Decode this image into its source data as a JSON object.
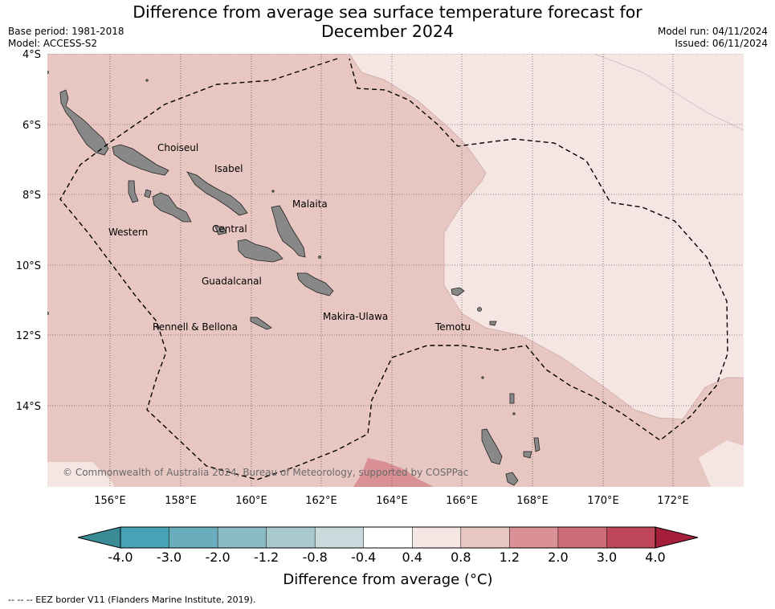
{
  "title_line1": "Difference from average sea surface temperature forecast for",
  "title_line2": "December 2024",
  "base_period": "Base period: 1981-2018",
  "model": "Model: ACCESS-S2",
  "model_run": "Model run: 04/11/2024",
  "issued": "Issued: 06/11/2024",
  "lat_labels": [
    "4°S",
    "6°S",
    "8°S",
    "10°S",
    "12°S",
    "14°S"
  ],
  "lon_labels": [
    "156°E",
    "158°E",
    "160°E",
    "162°E",
    "164°E",
    "166°E",
    "168°E",
    "170°E",
    "172°E"
  ],
  "region_labels": {
    "choiseul": "Choiseul",
    "isabel": "Isabel",
    "malaita": "Malaita",
    "western": "Western",
    "central": "Central",
    "guadalcanal": "Guadalcanal",
    "makira": "Makira-Ulawa",
    "temotu": "Temotu",
    "rennell": "Rennell & Bellona"
  },
  "copyright": "© Commonwealth of Australia 2024, Bureau of Meteorology, supported by COSPPac",
  "colorbar": {
    "ticks": [
      "-4.0",
      "-3.0",
      "-2.0",
      "-1.2",
      "-0.8",
      "-0.4",
      "0.4",
      "0.8",
      "1.2",
      "2.0",
      "3.0",
      "4.0"
    ],
    "colors": [
      "#46a2b4",
      "#6aaebd",
      "#8bbcc5",
      "#a8c8cc",
      "#c9d9dc",
      "#ffffff",
      "#f5e5e3",
      "#e8c7c2",
      "#d99196",
      "#cc6c78",
      "#bd4658"
    ],
    "low_extend_color": "#3b8b97",
    "high_extend_color": "#a51f3a",
    "label": "Difference from average (°C)"
  },
  "footnote": "--  --  -- EEZ border V11 (Flanders Marine Institute, 2019)."
}
